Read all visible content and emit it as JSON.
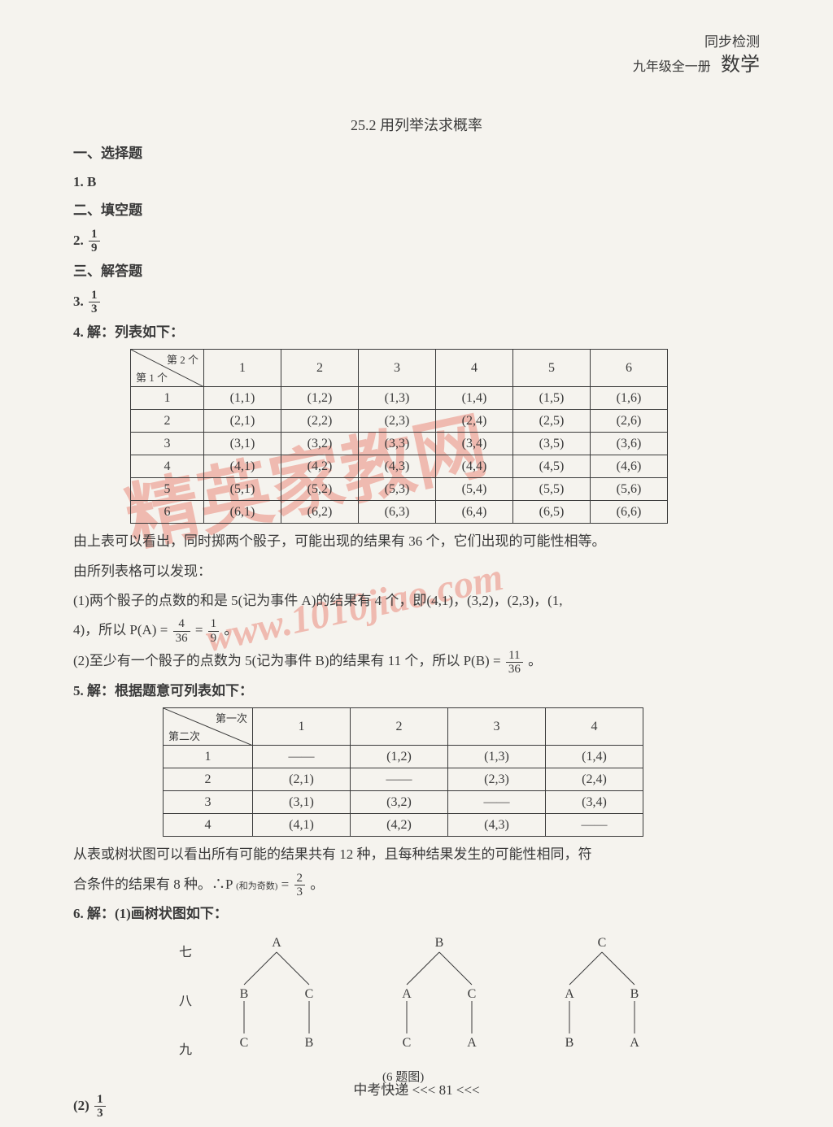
{
  "header": {
    "line1": "同步检测",
    "line2": "九年级全一册",
    "subject": "数学"
  },
  "title": "25.2 用列举法求概率",
  "s1_header": "一、选择题",
  "q1": "1. B",
  "s2_header": "二、填空题",
  "q2_label": "2.",
  "q2_num": "1",
  "q2_den": "9",
  "s3_header": "三、解答题",
  "q3_label": "3.",
  "q3_num": "1",
  "q3_den": "3",
  "q4_intro": "4. 解：列表如下：",
  "table1": {
    "diag_top": "第 2 个",
    "diag_bot": "第 1 个",
    "headers": [
      "1",
      "2",
      "3",
      "4",
      "5",
      "6"
    ],
    "rows": [
      {
        "h": "1",
        "cells": [
          "(1,1)",
          "(1,2)",
          "(1,3)",
          "(1,4)",
          "(1,5)",
          "(1,6)"
        ]
      },
      {
        "h": "2",
        "cells": [
          "(2,1)",
          "(2,2)",
          "(2,3)",
          "(2,4)",
          "(2,5)",
          "(2,6)"
        ]
      },
      {
        "h": "3",
        "cells": [
          "(3,1)",
          "(3,2)",
          "(3,3)",
          "(3,4)",
          "(3,5)",
          "(3,6)"
        ]
      },
      {
        "h": "4",
        "cells": [
          "(4,1)",
          "(4,2)",
          "(4,3)",
          "(4,4)",
          "(4,5)",
          "(4,6)"
        ]
      },
      {
        "h": "5",
        "cells": [
          "(5,1)",
          "(5,2)",
          "(5,3)",
          "(5,4)",
          "(5,5)",
          "(5,6)"
        ]
      },
      {
        "h": "6",
        "cells": [
          "(6,1)",
          "(6,2)",
          "(6,3)",
          "(6,4)",
          "(6,5)",
          "(6,6)"
        ]
      }
    ]
  },
  "q4_p1": "由上表可以看出，同时掷两个骰子，可能出现的结果有 36 个，它们出现的可能性相等。",
  "q4_p2": "由所列表格可以发现：",
  "q4_p3a": "(1)两个骰子的点数的和是 5(记为事件 A)的结果有 4 个，即(4,1)，(3,2)，(2,3)，(1,",
  "q4_p3b": "4)，所以 P(A) = ",
  "q4_f1_num": "4",
  "q4_f1_den": "36",
  "q4_eq": " = ",
  "q4_f2_num": "1",
  "q4_f2_den": "9",
  "q4_p3c": "。",
  "q4_p4a": "(2)至少有一个骰子的点数为 5(记为事件 B)的结果有 11 个，所以 P(B) = ",
  "q4_f3_num": "11",
  "q4_f3_den": "36",
  "q4_p4b": "。",
  "q5_intro": "5. 解：根据题意可列表如下：",
  "table2": {
    "diag_top": "第一次",
    "diag_bot": "第二次",
    "headers": [
      "1",
      "2",
      "3",
      "4"
    ],
    "rows": [
      {
        "h": "1",
        "cells": [
          "——",
          "(1,2)",
          "(1,3)",
          "(1,4)"
        ]
      },
      {
        "h": "2",
        "cells": [
          "(2,1)",
          "——",
          "(2,3)",
          "(2,4)"
        ]
      },
      {
        "h": "3",
        "cells": [
          "(3,1)",
          "(3,2)",
          "——",
          "(3,4)"
        ]
      },
      {
        "h": "4",
        "cells": [
          "(4,1)",
          "(4,2)",
          "(4,3)",
          "——"
        ]
      }
    ]
  },
  "q5_p1": "从表或树状图可以看出所有可能的结果共有 12 种，且每种结果发生的可能性相同，符",
  "q5_p2a": "合条件的结果有 8 种。∴P",
  "q5_sub": "(和为奇数)",
  "q5_eq": " = ",
  "q5_num": "2",
  "q5_den": "3",
  "q5_p2b": "。",
  "q6_intro": "6. 解：(1)画树状图如下：",
  "tree": {
    "row_labels": [
      "七",
      "八",
      "九"
    ],
    "caption": "(6 题图)",
    "roots": [
      "A",
      "B",
      "C"
    ],
    "level2": [
      [
        "B",
        "C"
      ],
      [
        "A",
        "C"
      ],
      [
        "A",
        "B"
      ]
    ],
    "level3": [
      [
        "C",
        "B"
      ],
      [
        "C",
        "A"
      ],
      [
        "B",
        "A"
      ]
    ]
  },
  "q6_2_label": "(2)",
  "q6_2_num": "1",
  "q6_2_den": "3",
  "footer": "中考快递  <<<  81  <<<",
  "watermark": "精英家教网",
  "watermark_url": "www.1010jiao.com",
  "colors": {
    "text": "#3a3a3a",
    "bg": "#f5f3ee",
    "watermark": "rgba(230,80,60,0.35)"
  }
}
